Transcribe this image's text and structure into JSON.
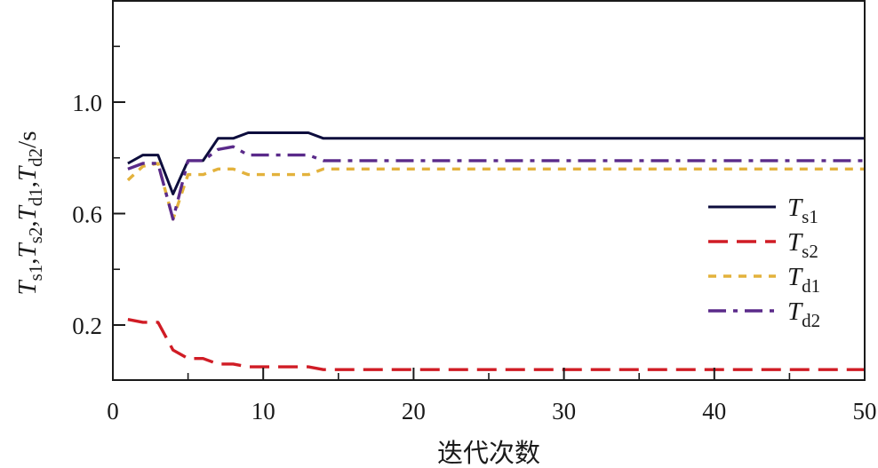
{
  "chart_data": {
    "type": "line",
    "title": "",
    "xlabel": "迭代次数",
    "ylabel": {
      "parts": [
        {
          "var": "T",
          "sub": "s1"
        },
        {
          "var": "T",
          "sub": "s2"
        },
        {
          "var": "T",
          "sub": "d1"
        },
        {
          "var": "T",
          "sub": "d2"
        }
      ],
      "unit": "/s",
      "text": "Ts1,Ts2,Td1,Td2/s"
    },
    "xlim": [
      0,
      50
    ],
    "ylim": [
      0.0,
      1.36
    ],
    "x_major_ticks": [
      0,
      10,
      20,
      30,
      40,
      50
    ],
    "x_minor_ticks": [
      5,
      15,
      25,
      35,
      45
    ],
    "x_tick_labels": [
      "0",
      "10",
      "20",
      "30",
      "40",
      "50"
    ],
    "y_major_ticks": [
      0.2,
      0.6,
      1.0
    ],
    "y_minor_ticks": [
      0.4,
      0.8,
      1.2
    ],
    "y_tick_labels": [
      "0.2",
      "0.6",
      "1.0"
    ],
    "grid": false,
    "legend_position": "center-right",
    "x": [
      1,
      2,
      3,
      4,
      5,
      6,
      7,
      8,
      9,
      10,
      11,
      12,
      13,
      14,
      15,
      16,
      17,
      18,
      19,
      20,
      21,
      22,
      23,
      24,
      25,
      26,
      27,
      28,
      29,
      30,
      31,
      32,
      33,
      34,
      35,
      36,
      37,
      38,
      39,
      40,
      41,
      42,
      43,
      44,
      45,
      46,
      47,
      48,
      49,
      50
    ],
    "series": [
      {
        "name": "Ts1",
        "var": "T",
        "sub": "s1",
        "color": "#0d0d3d",
        "style": "solid",
        "values": [
          0.78,
          0.81,
          0.81,
          0.67,
          0.79,
          0.79,
          0.87,
          0.87,
          0.89,
          0.89,
          0.89,
          0.89,
          0.89,
          0.87,
          0.87,
          0.87,
          0.87,
          0.87,
          0.87,
          0.87,
          0.87,
          0.87,
          0.87,
          0.87,
          0.87,
          0.87,
          0.87,
          0.87,
          0.87,
          0.87,
          0.87,
          0.87,
          0.87,
          0.87,
          0.87,
          0.87,
          0.87,
          0.87,
          0.87,
          0.87,
          0.87,
          0.87,
          0.87,
          0.87,
          0.87,
          0.87,
          0.87,
          0.87,
          0.87,
          0.87
        ]
      },
      {
        "name": "Ts2",
        "var": "T",
        "sub": "s2",
        "color": "#d01c25",
        "style": "dashed",
        "values": [
          0.22,
          0.21,
          0.21,
          0.11,
          0.08,
          0.08,
          0.06,
          0.06,
          0.05,
          0.05,
          0.05,
          0.05,
          0.05,
          0.04,
          0.04,
          0.04,
          0.04,
          0.04,
          0.04,
          0.04,
          0.04,
          0.04,
          0.04,
          0.04,
          0.04,
          0.04,
          0.04,
          0.04,
          0.04,
          0.04,
          0.04,
          0.04,
          0.04,
          0.04,
          0.04,
          0.04,
          0.04,
          0.04,
          0.04,
          0.04,
          0.04,
          0.04,
          0.04,
          0.04,
          0.04,
          0.04,
          0.04,
          0.04,
          0.04,
          0.04
        ]
      },
      {
        "name": "Td1",
        "var": "T",
        "sub": "d1",
        "color": "#e3b23c",
        "style": "dotted",
        "values": [
          0.72,
          0.77,
          0.78,
          0.58,
          0.74,
          0.74,
          0.76,
          0.76,
          0.74,
          0.74,
          0.74,
          0.74,
          0.74,
          0.76,
          0.76,
          0.76,
          0.76,
          0.76,
          0.76,
          0.76,
          0.76,
          0.76,
          0.76,
          0.76,
          0.76,
          0.76,
          0.76,
          0.76,
          0.76,
          0.76,
          0.76,
          0.76,
          0.76,
          0.76,
          0.76,
          0.76,
          0.76,
          0.76,
          0.76,
          0.76,
          0.76,
          0.76,
          0.76,
          0.76,
          0.76,
          0.76,
          0.76,
          0.76,
          0.76,
          0.76
        ]
      },
      {
        "name": "Td2",
        "var": "T",
        "sub": "d2",
        "color": "#5a2a8a",
        "style": "dashdot",
        "values": [
          0.76,
          0.78,
          0.78,
          0.58,
          0.79,
          0.79,
          0.83,
          0.84,
          0.81,
          0.81,
          0.81,
          0.81,
          0.81,
          0.79,
          0.79,
          0.79,
          0.79,
          0.79,
          0.79,
          0.79,
          0.79,
          0.79,
          0.79,
          0.79,
          0.79,
          0.79,
          0.79,
          0.79,
          0.79,
          0.79,
          0.79,
          0.79,
          0.79,
          0.79,
          0.79,
          0.79,
          0.79,
          0.79,
          0.79,
          0.79,
          0.79,
          0.79,
          0.79,
          0.79,
          0.79,
          0.79,
          0.79,
          0.79,
          0.79,
          0.79
        ]
      }
    ]
  }
}
